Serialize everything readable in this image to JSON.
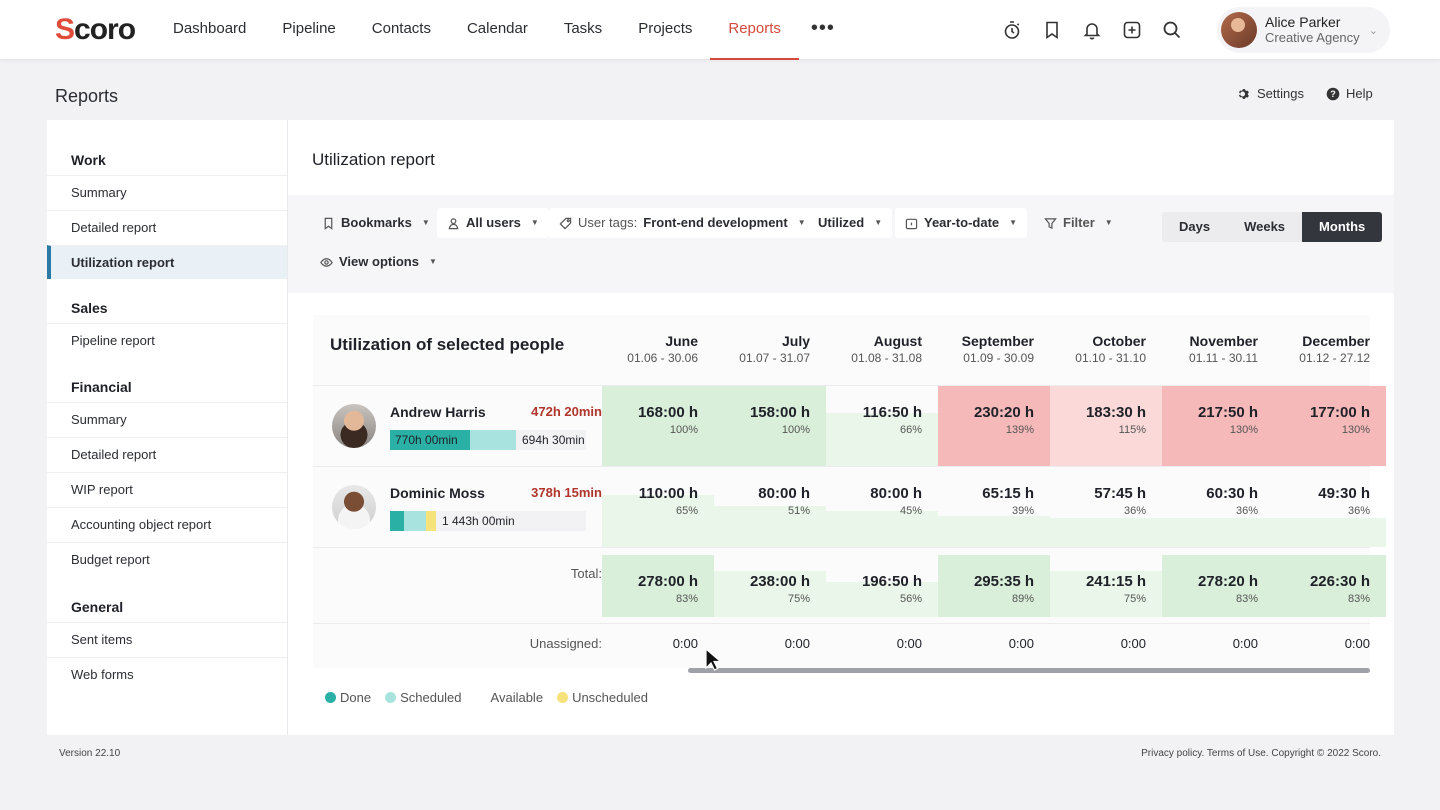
{
  "app": {
    "brand": "Scoro",
    "nav": [
      "Dashboard",
      "Pipeline",
      "Contacts",
      "Calendar",
      "Tasks",
      "Projects",
      "Reports"
    ],
    "nav_active": "Reports",
    "nav_more": "•••",
    "user": {
      "name": "Alice Parker",
      "org": "Creative Agency"
    }
  },
  "page": {
    "title": "Reports",
    "settings": "Settings",
    "help": "Help"
  },
  "sidebar": {
    "work": {
      "title": "Work",
      "items": [
        "Summary",
        "Detailed report",
        "Utilization report"
      ]
    },
    "sales": {
      "title": "Sales",
      "items": [
        "Pipeline report"
      ]
    },
    "financial": {
      "title": "Financial",
      "items": [
        "Summary",
        "Detailed report",
        "WIP report",
        "Accounting object report",
        "Budget report"
      ]
    },
    "general": {
      "title": "General",
      "items": [
        "Sent items",
        "Web forms"
      ]
    },
    "active": "Utilization report"
  },
  "report": {
    "title": "Utilization report",
    "toolbar": {
      "bookmarks": "Bookmarks",
      "users": "All users",
      "tags_prefix": "User tags:",
      "tags_value": "Front-end development",
      "utilized": "Utilized",
      "period": "Year-to-date",
      "filter": "Filter",
      "view_options": "View options",
      "seg": [
        "Days",
        "Weeks",
        "Months"
      ],
      "seg_active": "Months"
    },
    "table_title": "Utilization of selected people",
    "months": [
      {
        "name": "June",
        "range": "01.06 - 30.06"
      },
      {
        "name": "July",
        "range": "01.07 - 31.07"
      },
      {
        "name": "August",
        "range": "01.08 - 31.08"
      },
      {
        "name": "September",
        "range": "01.09 - 30.09"
      },
      {
        "name": "October",
        "range": "01.10 - 31.10"
      },
      {
        "name": "November",
        "range": "01.11 - 30.11"
      },
      {
        "name": "December",
        "range": "01.12 - 27.12"
      }
    ],
    "people": [
      {
        "name": "Andrew Harris",
        "hours": "472h 20min",
        "bar_done": "770h 00min",
        "bar_rest": "694h 30min",
        "cells": [
          {
            "value": "168:00 h",
            "pct": "100%",
            "level": 100
          },
          {
            "value": "158:00 h",
            "pct": "100%",
            "level": 100
          },
          {
            "value": "116:50 h",
            "pct": "66%",
            "level": 66
          },
          {
            "value": "230:20 h",
            "pct": "139%",
            "level": 139
          },
          {
            "value": "183:30 h",
            "pct": "115%",
            "level": 115
          },
          {
            "value": "217:50 h",
            "pct": "130%",
            "level": 130
          },
          {
            "value": "177:00 h",
            "pct": "130%",
            "level": 130
          }
        ]
      },
      {
        "name": "Dominic Moss",
        "hours": "378h 15min",
        "bar_done": "",
        "bar_rest": "1 443h 00min",
        "cells": [
          {
            "value": "110:00 h",
            "pct": "65%",
            "level": 65
          },
          {
            "value": "80:00 h",
            "pct": "51%",
            "level": 51
          },
          {
            "value": "80:00 h",
            "pct": "45%",
            "level": 45
          },
          {
            "value": "65:15 h",
            "pct": "39%",
            "level": 39
          },
          {
            "value": "57:45 h",
            "pct": "36%",
            "level": 36
          },
          {
            "value": "60:30 h",
            "pct": "36%",
            "level": 36
          },
          {
            "value": "49:30 h",
            "pct": "36%",
            "level": 36
          }
        ]
      }
    ],
    "total": {
      "label": "Total:",
      "cells": [
        {
          "value": "278:00 h",
          "pct": "83%",
          "level": 83
        },
        {
          "value": "238:00 h",
          "pct": "75%",
          "level": 75
        },
        {
          "value": "196:50 h",
          "pct": "56%",
          "level": 56
        },
        {
          "value": "295:35 h",
          "pct": "89%",
          "level": 89
        },
        {
          "value": "241:15 h",
          "pct": "75%",
          "level": 75
        },
        {
          "value": "278:20 h",
          "pct": "83%",
          "level": 83
        },
        {
          "value": "226:30 h",
          "pct": "83%",
          "level": 83
        }
      ]
    },
    "unassigned": {
      "label": "Unassigned:",
      "values": [
        "0:00",
        "0:00",
        "0:00",
        "0:00",
        "0:00",
        "0:00",
        "0:00"
      ]
    },
    "legend": [
      "Done",
      "Scheduled",
      "Available",
      "Unscheduled"
    ]
  },
  "footer": {
    "version": "Version 22.10",
    "links": "Privacy policy. Terms of Use. Copyright © 2022 Scoro."
  },
  "colors": {
    "accent": "#d4493c",
    "done": "#2ab0a4",
    "scheduled": "#a9e3e0",
    "unscheduled": "#f6e27a",
    "green_strong": "#d9efd9",
    "green_light": "#e9f6e9",
    "red_strong": "#f6b9b9",
    "red_light": "#fbd9d9"
  }
}
